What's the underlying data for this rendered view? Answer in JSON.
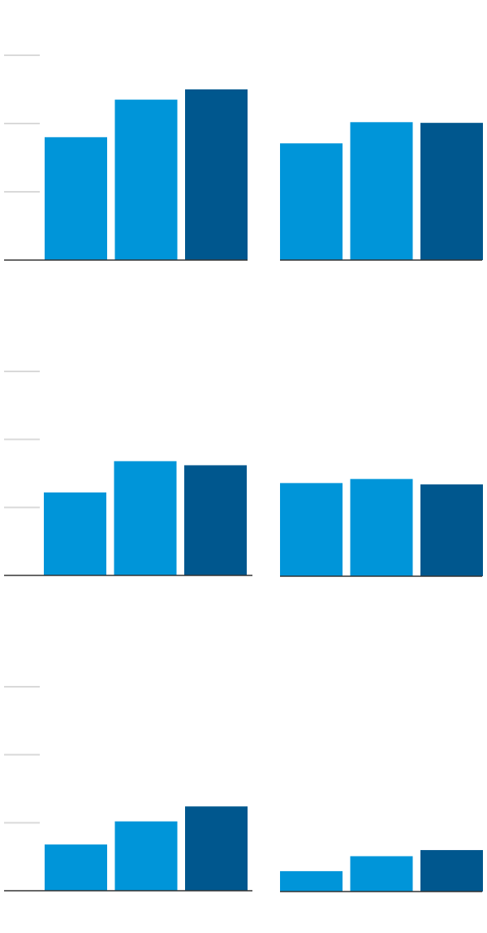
{
  "chart_data": [
    {
      "type": "bar",
      "values": [
        1.8,
        2.35,
        2.5
      ],
      "colors": [
        "#0095d9",
        "#0095d9",
        "#00578e"
      ],
      "ylim": [
        0,
        3
      ],
      "yticks": [
        1,
        2,
        3
      ],
      "grid": true
    },
    {
      "type": "bar",
      "values": [
        1.71,
        2.02,
        2.01
      ],
      "colors": [
        "#0095d9",
        "#0095d9",
        "#00578e"
      ],
      "ylim": [
        0,
        3
      ],
      "grid": false
    },
    {
      "type": "bar",
      "values": [
        1.22,
        1.68,
        1.62
      ],
      "colors": [
        "#0095d9",
        "#0095d9",
        "#00578e"
      ],
      "ylim": [
        0,
        3
      ],
      "yticks": [
        1,
        2,
        3
      ],
      "grid": true
    },
    {
      "type": "bar",
      "values": [
        1.37,
        1.43,
        1.35
      ],
      "colors": [
        "#0095d9",
        "#0095d9",
        "#00578e"
      ],
      "ylim": [
        0,
        3
      ],
      "grid": false
    },
    {
      "type": "bar",
      "values": [
        0.68,
        1.02,
        1.24
      ],
      "colors": [
        "#0095d9",
        "#0095d9",
        "#00578e"
      ],
      "ylim": [
        0,
        3
      ],
      "yticks": [
        1,
        2,
        3
      ],
      "grid": true
    },
    {
      "type": "bar",
      "values": [
        0.3,
        0.52,
        0.61
      ],
      "colors": [
        "#0095d9",
        "#0095d9",
        "#00578e"
      ],
      "ylim": [
        0,
        3
      ],
      "grid": false
    }
  ]
}
